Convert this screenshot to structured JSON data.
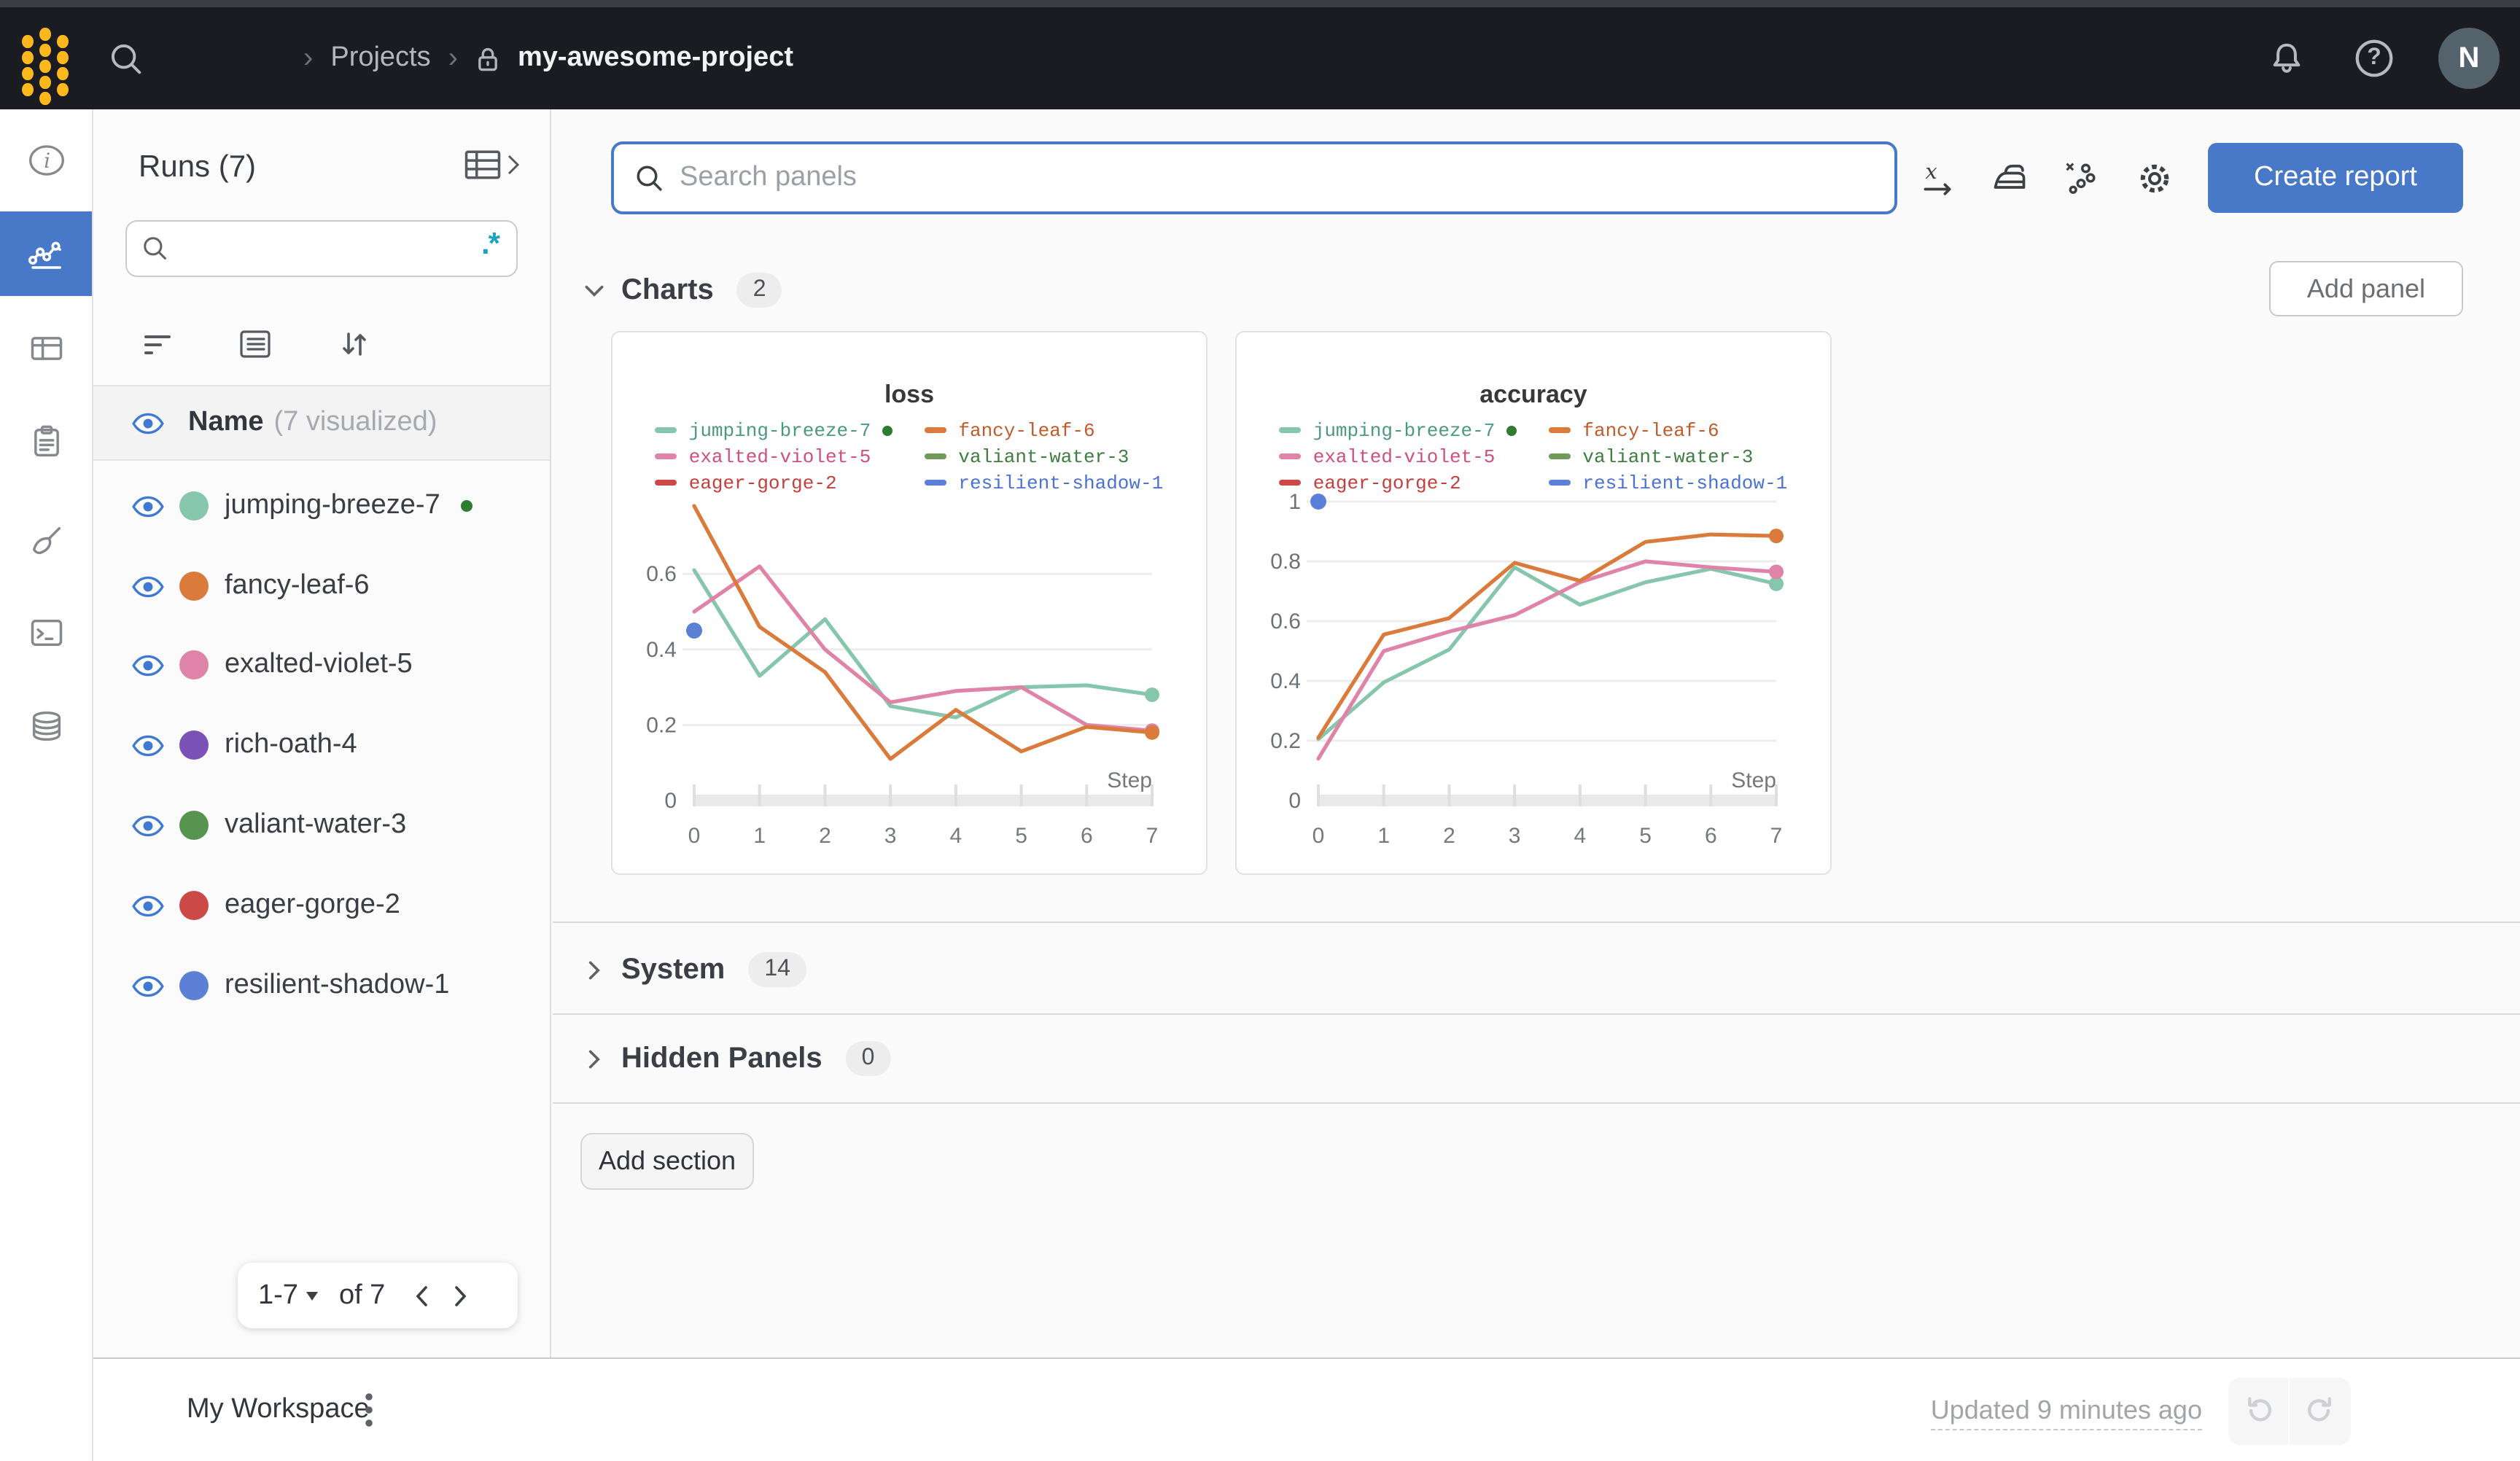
{
  "topbar": {
    "breadcrumb_separator": "›",
    "projects_label": "Projects",
    "project_name": "my-awesome-project",
    "help_glyph": "?",
    "avatar_initial": "N"
  },
  "left_rail": {
    "items": [
      {
        "icon": "info",
        "selected": false
      },
      {
        "icon": "line-chart",
        "selected": true
      },
      {
        "icon": "table",
        "selected": false
      },
      {
        "icon": "clipboard",
        "selected": false
      },
      {
        "icon": "broom",
        "selected": false
      },
      {
        "icon": "terminal",
        "selected": false
      },
      {
        "icon": "database",
        "selected": false
      }
    ]
  },
  "runs_sidebar": {
    "title": "Runs (7)",
    "search_value": "",
    "regex_label": ".*",
    "list_header": {
      "label": "Name",
      "suffix": "(7 visualized)"
    },
    "runs": [
      {
        "name": "jumping-breeze-7",
        "color": "#85c6ad",
        "active": true
      },
      {
        "name": "fancy-leaf-6",
        "color": "#da7b3c",
        "active": false
      },
      {
        "name": "exalted-violet-5",
        "color": "#e083a8",
        "active": false
      },
      {
        "name": "rich-oath-4",
        "color": "#7a52b5",
        "active": false
      },
      {
        "name": "valiant-water-3",
        "color": "#56944f",
        "active": false
      },
      {
        "name": "eager-gorge-2",
        "color": "#cb4a48",
        "active": false
      },
      {
        "name": "resilient-shadow-1",
        "color": "#5c80d6",
        "active": false
      }
    ],
    "pagination": {
      "range": "1-7",
      "of": "of 7"
    }
  },
  "main": {
    "search_placeholder": "Search panels",
    "create_report_label": "Create report",
    "add_panel_label": "Add panel",
    "add_section_label": "Add section",
    "sections": {
      "charts": {
        "label": "Charts",
        "count": "2"
      },
      "system": {
        "label": "System",
        "count": "14"
      },
      "hidden": {
        "label": "Hidden Panels",
        "count": "0"
      }
    }
  },
  "footer": {
    "workspace_label": "My Workspace",
    "updated_label": "Updated 9 minutes ago"
  },
  "chart_data": {
    "type": "line",
    "x_label": "Step",
    "x_ticks": [
      0,
      1,
      2,
      3,
      4,
      5,
      6,
      7
    ],
    "legend": [
      {
        "label": "jumping-breeze-7",
        "color": "#85c6ad",
        "text_color": "#4b9a7e",
        "active_dot": true
      },
      {
        "label": "fancy-leaf-6",
        "color": "#da7b3c",
        "text_color": "#c05c2c",
        "active_dot": false
      },
      {
        "label": "exalted-violet-5",
        "color": "#e083a8",
        "text_color": "#d04f7c",
        "active_dot": false
      },
      {
        "label": "valiant-water-3",
        "color": "#6f9a58",
        "text_color": "#3f7d42",
        "active_dot": false
      },
      {
        "label": "eager-gorge-2",
        "color": "#cb4a48",
        "text_color": "#c4403c",
        "active_dot": false
      },
      {
        "label": "resilient-shadow-1",
        "color": "#5c80d6",
        "text_color": "#4a72d0",
        "active_dot": false
      }
    ],
    "panels": [
      {
        "title": "loss",
        "ylim": [
          0,
          0.8
        ],
        "y_ticks": [
          0,
          0.2,
          0.4,
          0.6
        ],
        "series": [
          {
            "name": "jumping-breeze-7",
            "color": "#85c6ad",
            "values": [
              0.61,
              0.33,
              0.48,
              0.25,
              0.22,
              0.3,
              0.305,
              0.28
            ],
            "end_dot": true
          },
          {
            "name": "exalted-violet-5",
            "color": "#e083a8",
            "values": [
              0.5,
              0.62,
              0.4,
              0.26,
              0.29,
              0.3,
              0.2,
              0.185
            ],
            "end_dot": true
          },
          {
            "name": "fancy-leaf-6",
            "color": "#da7b3c",
            "values": [
              0.78,
              0.46,
              0.34,
              0.11,
              0.24,
              0.13,
              0.195,
              0.18
            ],
            "end_dot": true
          }
        ],
        "points": [
          {
            "name": "resilient-shadow-1",
            "color": "#5c80d6",
            "x": 0,
            "y": 0.45
          }
        ]
      },
      {
        "title": "accuracy",
        "ylim": [
          0,
          1.07
        ],
        "y_ticks": [
          0,
          0.2,
          0.4,
          0.6,
          0.8,
          1
        ],
        "series": [
          {
            "name": "jumping-breeze-7",
            "color": "#85c6ad",
            "values": [
              0.205,
              0.395,
              0.505,
              0.78,
              0.655,
              0.73,
              0.775,
              0.725
            ],
            "end_dot": true
          },
          {
            "name": "exalted-violet-5",
            "color": "#e083a8",
            "values": [
              0.14,
              0.5,
              0.565,
              0.62,
              0.73,
              0.8,
              0.78,
              0.765
            ],
            "end_dot": true
          },
          {
            "name": "fancy-leaf-6",
            "color": "#da7b3c",
            "values": [
              0.21,
              0.555,
              0.61,
              0.795,
              0.735,
              0.865,
              0.89,
              0.885
            ],
            "end_dot": true
          }
        ],
        "points": [
          {
            "name": "resilient-shadow-1",
            "color": "#5c80d6",
            "x": 0,
            "y": 1.0
          }
        ]
      }
    ]
  }
}
